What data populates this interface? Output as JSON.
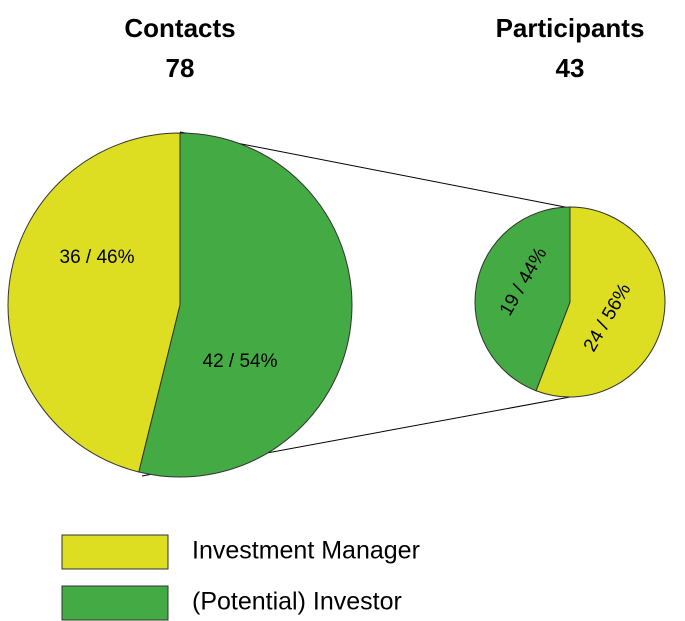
{
  "chart_data": [
    {
      "type": "pie",
      "title": "Contacts",
      "total": 78,
      "values": [
        36,
        42
      ],
      "value_labels": [
        "36 / 46%",
        "42 / 54%"
      ]
    },
    {
      "type": "pie",
      "title": "Participants",
      "total": 43,
      "values": [
        24,
        19
      ],
      "value_labels": [
        "24 / 56%",
        "19 / 44%"
      ]
    }
  ],
  "legend": {
    "items": [
      {
        "name": "Investment Manager",
        "color": "#dddd22"
      },
      {
        "name": "(Potential) Investor",
        "color": "#44aa44"
      }
    ]
  }
}
